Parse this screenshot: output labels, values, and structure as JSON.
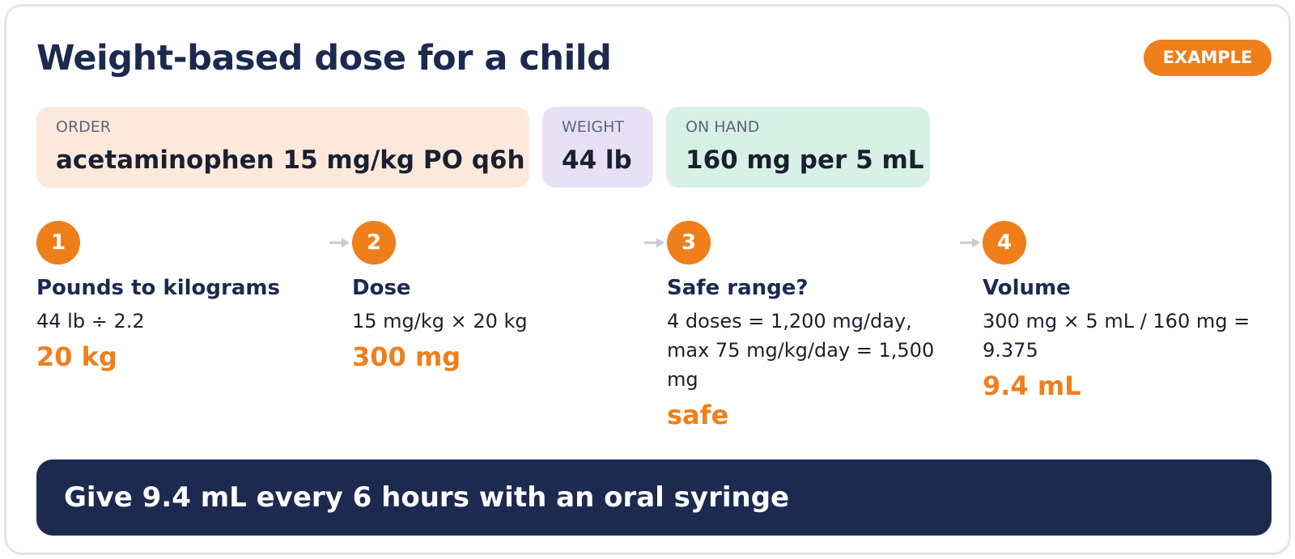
{
  "header": {
    "title": "Weight-based dose for a child",
    "badge": "EXAMPLE"
  },
  "info": {
    "order": {
      "label": "ORDER",
      "value": "acetaminophen 15 mg/kg PO q6h"
    },
    "weight": {
      "label": "WEIGHT",
      "value": "44 lb"
    },
    "on_hand": {
      "label": "ON HAND",
      "value": "160 mg per 5 mL"
    }
  },
  "steps": [
    {
      "number": "1",
      "title": "Pounds to kilograms",
      "calc": "44 lb ÷ 2.2",
      "result": "20 kg"
    },
    {
      "number": "2",
      "title": "Dose",
      "calc": "15 mg/kg × 20 kg",
      "result": "300 mg"
    },
    {
      "number": "3",
      "title": "Safe range?",
      "calc": "4 doses = 1,200 mg/day, max 75 mg/kg/day = 1,500 mg",
      "result": "safe"
    },
    {
      "number": "4",
      "title": "Volume",
      "calc": "300 mg × 5 mL / 160 mg = 9.375",
      "result": "9.4 mL"
    }
  ],
  "banner": {
    "text": "Give 9.4 mL every 6 hours with an oral syringe"
  },
  "colors": {
    "accent": "#ee7f1b",
    "navy": "#1c2a50",
    "order_bg": "#fde9dc",
    "weight_bg": "#e8e1f6",
    "on_hand_bg": "#d7f1e6"
  },
  "icons": {
    "step_connector": "arrow-right-icon"
  }
}
